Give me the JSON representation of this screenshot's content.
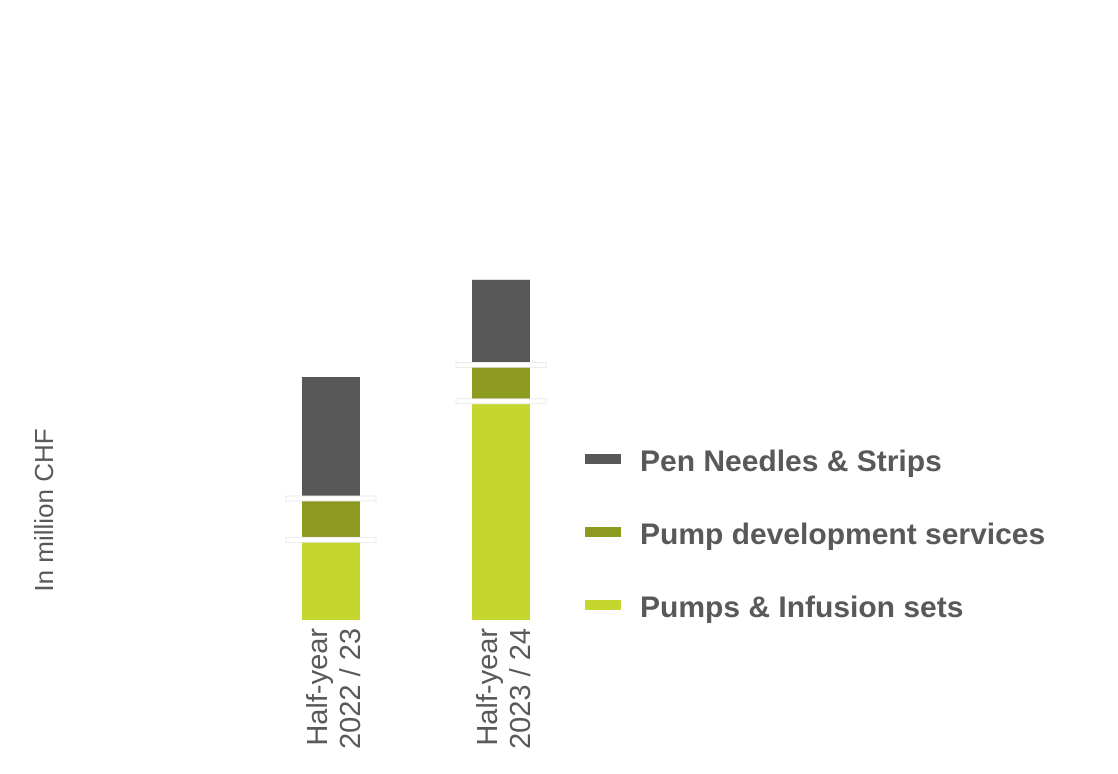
{
  "chart_data": {
    "type": "bar",
    "stacked": true,
    "ylabel": "In million CHF",
    "categories": [
      [
        "Half-year",
        "2022 / 23"
      ],
      [
        "Half-year",
        "2023 / 24"
      ]
    ],
    "series": [
      {
        "name": "Pumps & Infusion sets",
        "color": "#c5d72f",
        "values": [
          33,
          90
        ]
      },
      {
        "name": "Pump development services",
        "color": "#8c9a1f",
        "values": [
          17,
          15
        ]
      },
      {
        "name": "Pen Needles & Strips",
        "color": "#575757",
        "values": [
          50,
          35
        ]
      }
    ],
    "legend_order": [
      "Pen Needles & Strips",
      "Pump development services",
      "Pumps & Infusion sets"
    ],
    "legend_position": "right",
    "grid": false
  }
}
